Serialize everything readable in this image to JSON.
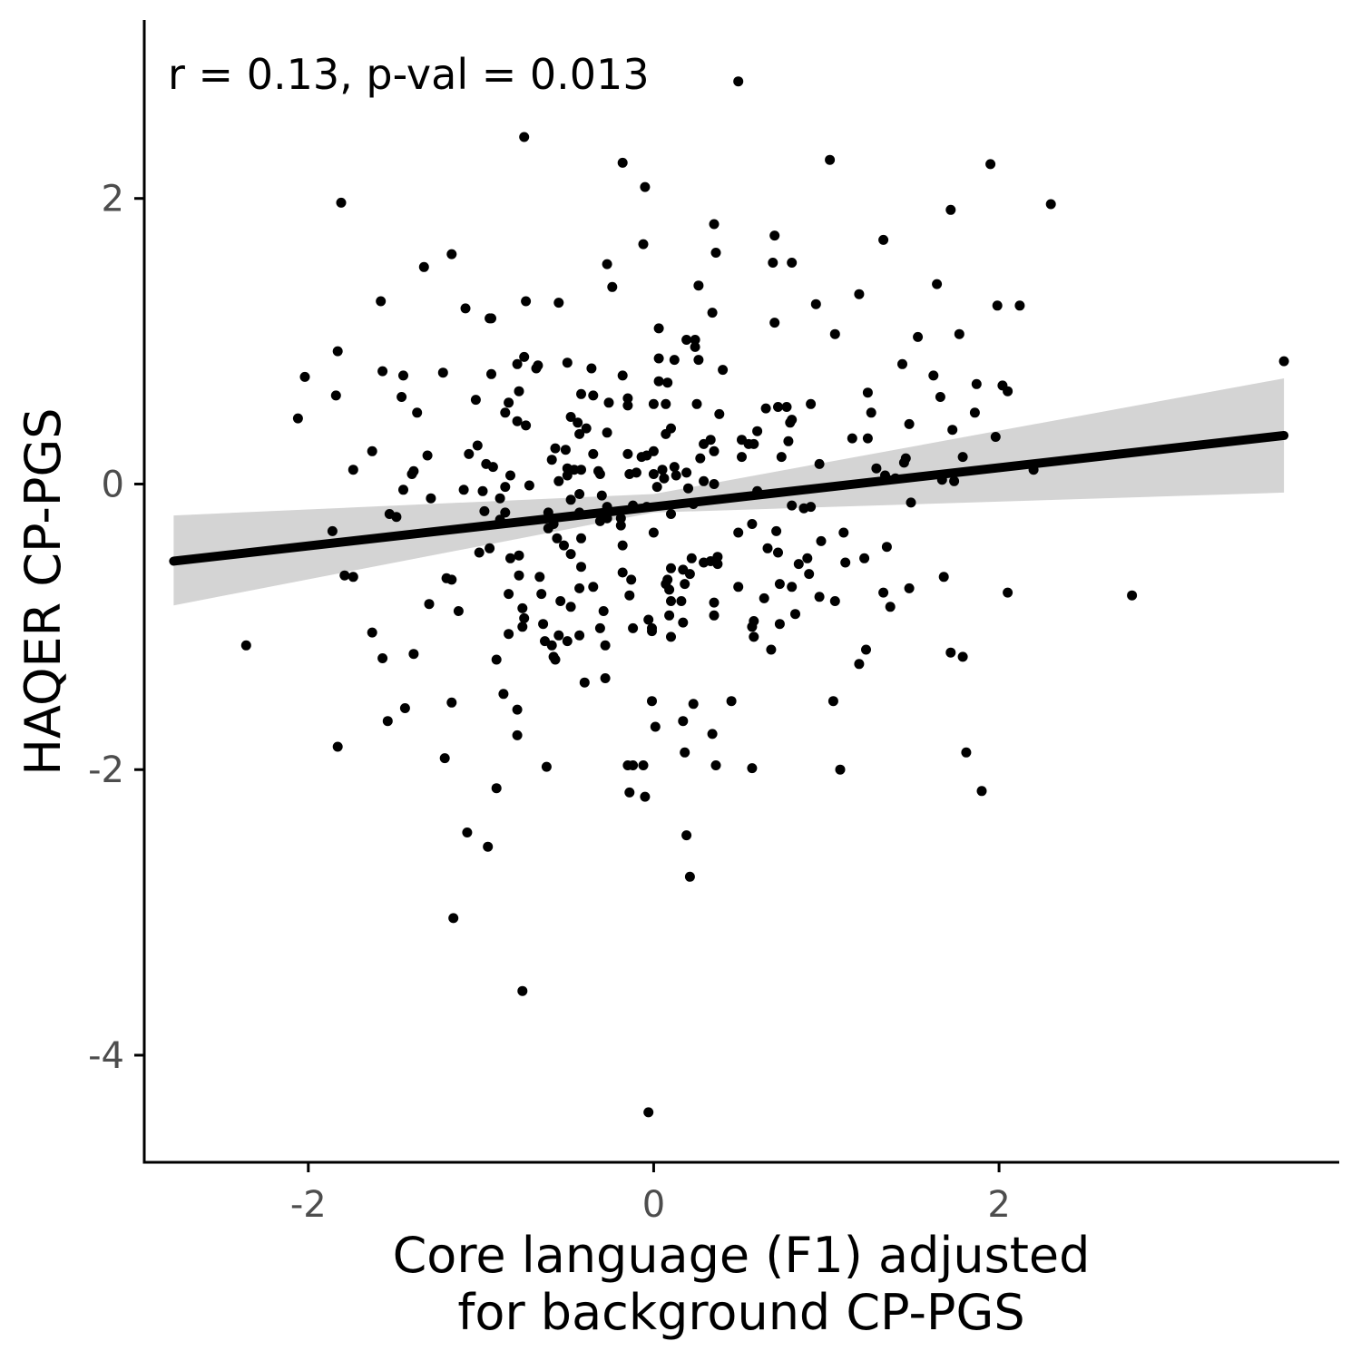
{
  "chart_data": {
    "type": "scatter",
    "annotation": "r = 0.13, p-val = 0.013",
    "xlabel_lines": [
      "Core language (F1) adjusted",
      "for background CP-PGS"
    ],
    "ylabel": "HAQER CP-PGS",
    "xlim": [
      -2.95,
      3.97
    ],
    "ylim": [
      -4.75,
      3.25
    ],
    "x_ticks": [
      {
        "value": -2,
        "label": "-2"
      },
      {
        "value": 0,
        "label": "0"
      },
      {
        "value": 2,
        "label": "2"
      }
    ],
    "y_ticks": [
      {
        "value": -4,
        "label": "-4"
      },
      {
        "value": -2,
        "label": "-2"
      },
      {
        "value": 0,
        "label": "0"
      },
      {
        "value": 2,
        "label": "2"
      }
    ],
    "grid": false,
    "colors": {
      "points": "#000000",
      "fit_line": "#000000",
      "confidence_band": "#d4d4d4",
      "axis": "#000000",
      "tick_label": "#4d4d4d"
    },
    "regression": {
      "x_range": [
        -2.78,
        3.65
      ],
      "line": [
        [
          -2.78,
          -0.54
        ],
        [
          3.65,
          0.34
        ]
      ],
      "band_upper": [
        [
          -2.78,
          -0.22
        ],
        [
          0.0,
          -0.07
        ],
        [
          3.65,
          0.74
        ]
      ],
      "band_lower": [
        [
          -2.78,
          -0.85
        ],
        [
          0.0,
          -0.2
        ],
        [
          3.65,
          -0.06
        ]
      ]
    },
    "points": [
      [
        0.49,
        2.82
      ],
      [
        -0.75,
        2.43
      ],
      [
        -0.18,
        2.25
      ],
      [
        1.02,
        2.27
      ],
      [
        1.95,
        2.24
      ],
      [
        -0.05,
        2.08
      ],
      [
        -1.81,
        1.97
      ],
      [
        2.3,
        1.96
      ],
      [
        1.72,
        1.92
      ],
      [
        0.35,
        1.82
      ],
      [
        0.7,
        1.74
      ],
      [
        1.33,
        1.71
      ],
      [
        -0.06,
        1.68
      ],
      [
        0.36,
        1.62
      ],
      [
        -1.17,
        1.61
      ],
      [
        0.69,
        1.55
      ],
      [
        0.8,
        1.55
      ],
      [
        -0.27,
        1.54
      ],
      [
        -1.33,
        1.52
      ],
      [
        -0.24,
        1.38
      ],
      [
        0.26,
        1.39
      ],
      [
        1.64,
        1.4
      ],
      [
        1.19,
        1.33
      ],
      [
        -1.58,
        1.28
      ],
      [
        -0.74,
        1.28
      ],
      [
        -0.55,
        1.27
      ],
      [
        0.94,
        1.26
      ],
      [
        1.99,
        1.25
      ],
      [
        2.12,
        1.25
      ],
      [
        -1.09,
        1.23
      ],
      [
        0.34,
        1.2
      ],
      [
        -0.94,
        1.16
      ],
      [
        -0.95,
        1.16
      ],
      [
        0.7,
        1.13
      ],
      [
        0.03,
        1.09
      ],
      [
        1.05,
        1.05
      ],
      [
        1.77,
        1.05
      ],
      [
        1.53,
        1.03
      ],
      [
        0.19,
        1.01
      ],
      [
        0.24,
        1.01
      ],
      [
        0.24,
        0.96
      ],
      [
        -1.83,
        0.93
      ],
      [
        -0.75,
        0.89
      ],
      [
        3.65,
        0.86
      ],
      [
        0.03,
        0.88
      ],
      [
        0.26,
        0.87
      ],
      [
        0.12,
        0.87
      ],
      [
        -0.5,
        0.85
      ],
      [
        -0.79,
        0.84
      ],
      [
        1.44,
        0.84
      ],
      [
        -0.68,
        0.81
      ],
      [
        -0.36,
        0.81
      ],
      [
        -0.67,
        0.83
      ],
      [
        0.4,
        0.8
      ],
      [
        -1.57,
        0.79
      ],
      [
        -1.22,
        0.78
      ],
      [
        -0.94,
        0.77
      ],
      [
        -1.45,
        0.76
      ],
      [
        -2.02,
        0.75
      ],
      [
        -0.18,
        0.76
      ],
      [
        1.62,
        0.76
      ],
      [
        0.03,
        0.72
      ],
      [
        0.08,
        0.71
      ],
      [
        1.87,
        0.7
      ],
      [
        2.02,
        0.69
      ],
      [
        -0.78,
        0.65
      ],
      [
        -0.42,
        0.63
      ],
      [
        -1.84,
        0.62
      ],
      [
        -0.35,
        0.62
      ],
      [
        1.24,
        0.64
      ],
      [
        2.05,
        0.65
      ],
      [
        -1.46,
        0.61
      ],
      [
        -0.15,
        0.6
      ],
      [
        -1.03,
        0.59
      ],
      [
        1.66,
        0.61
      ],
      [
        -0.84,
        0.57
      ],
      [
        -0.26,
        0.57
      ],
      [
        -0.15,
        0.55
      ],
      [
        0.0,
        0.56
      ],
      [
        0.07,
        0.56
      ],
      [
        0.25,
        0.56
      ],
      [
        0.91,
        0.56
      ],
      [
        0.65,
        0.53
      ],
      [
        0.72,
        0.54
      ],
      [
        0.77,
        0.54
      ],
      [
        -1.37,
        0.5
      ],
      [
        -0.86,
        0.5
      ],
      [
        1.26,
        0.5
      ],
      [
        1.86,
        0.5
      ],
      [
        0.38,
        0.49
      ],
      [
        -0.48,
        0.47
      ],
      [
        -2.06,
        0.46
      ],
      [
        -0.44,
        0.43
      ],
      [
        -0.79,
        0.44
      ],
      [
        0.8,
        0.45
      ],
      [
        1.48,
        0.42
      ],
      [
        -0.74,
        0.41
      ],
      [
        -0.39,
        0.39
      ],
      [
        0.1,
        0.39
      ],
      [
        0.6,
        0.37
      ],
      [
        0.79,
        0.43
      ],
      [
        -0.43,
        0.35
      ],
      [
        -0.27,
        0.36
      ],
      [
        0.07,
        0.35
      ],
      [
        1.73,
        0.38
      ],
      [
        0.33,
        0.31
      ],
      [
        0.51,
        0.31
      ],
      [
        0.55,
        0.28
      ],
      [
        0.58,
        0.28
      ],
      [
        0.78,
        0.3
      ],
      [
        1.15,
        0.32
      ],
      [
        1.24,
        0.32
      ],
      [
        1.98,
        0.33
      ],
      [
        -1.02,
        0.27
      ],
      [
        -1.63,
        0.23
      ],
      [
        -0.57,
        0.25
      ],
      [
        -0.51,
        0.24
      ],
      [
        0.0,
        0.23
      ],
      [
        -0.35,
        0.21
      ],
      [
        -0.04,
        0.2
      ],
      [
        0.29,
        0.28
      ],
      [
        -1.31,
        0.2
      ],
      [
        -1.07,
        0.21
      ],
      [
        -0.15,
        0.21
      ],
      [
        0.27,
        0.18
      ],
      [
        0.35,
        0.23
      ],
      [
        0.74,
        0.19
      ],
      [
        0.51,
        0.19
      ],
      [
        -0.59,
        0.17
      ],
      [
        -0.97,
        0.14
      ],
      [
        -0.5,
        0.11
      ],
      [
        -0.42,
        0.1
      ],
      [
        -0.32,
        0.09
      ],
      [
        -0.5,
        0.06
      ],
      [
        -0.46,
        0.1
      ],
      [
        -0.07,
        0.19
      ],
      [
        0.13,
        0.06
      ],
      [
        -0.1,
        0.08
      ],
      [
        0.05,
        0.1
      ],
      [
        0.12,
        0.12
      ],
      [
        0.96,
        0.14
      ],
      [
        1.45,
        0.15
      ],
      [
        1.46,
        0.18
      ],
      [
        1.79,
        0.19
      ],
      [
        -1.74,
        0.1
      ],
      [
        -1.4,
        0.07
      ],
      [
        -1.39,
        0.09
      ],
      [
        -0.93,
        0.12
      ],
      [
        -0.83,
        0.06
      ],
      [
        -0.55,
        0.02
      ],
      [
        -0.31,
        0.07
      ],
      [
        -0.14,
        0.07
      ],
      [
        0.0,
        0.07
      ],
      [
        0.06,
        0.04
      ],
      [
        0.19,
        0.08
      ],
      [
        0.29,
        0.02
      ],
      [
        1.29,
        0.11
      ],
      [
        1.34,
        0.06
      ],
      [
        1.74,
        0.02
      ],
      [
        2.2,
        0.1
      ],
      [
        -0.86,
        -0.02
      ],
      [
        -1.1,
        -0.04
      ],
      [
        -0.99,
        -0.05
      ],
      [
        -0.72,
        -0.01
      ],
      [
        -0.43,
        -0.07
      ],
      [
        -0.3,
        -0.08
      ],
      [
        0.02,
        -0.02
      ],
      [
        0.2,
        -0.03
      ],
      [
        0.35,
        0.0
      ],
      [
        0.6,
        -0.05
      ],
      [
        1.4,
        0.04
      ],
      [
        1.67,
        0.03
      ],
      [
        -1.45,
        -0.04
      ],
      [
        -1.29,
        -0.1
      ],
      [
        -0.89,
        -0.1
      ],
      [
        -0.48,
        -0.11
      ],
      [
        -0.27,
        -0.16
      ],
      [
        -0.12,
        -0.15
      ],
      [
        -0.04,
        -0.16
      ],
      [
        0.23,
        -0.14
      ],
      [
        0.8,
        -0.15
      ],
      [
        0.87,
        -0.17
      ],
      [
        0.91,
        -0.16
      ],
      [
        1.49,
        -0.13
      ],
      [
        -0.98,
        -0.19
      ],
      [
        -0.86,
        -0.2
      ],
      [
        -0.61,
        -0.2
      ],
      [
        -0.43,
        -0.2
      ],
      [
        -0.27,
        -0.24
      ],
      [
        -0.19,
        -0.24
      ],
      [
        0.1,
        -0.21
      ],
      [
        -1.49,
        -0.23
      ],
      [
        -1.53,
        -0.21
      ],
      [
        -0.89,
        -0.25
      ],
      [
        -0.58,
        -0.28
      ],
      [
        -0.31,
        -0.26
      ],
      [
        -0.19,
        -0.29
      ],
      [
        0.57,
        -0.28
      ],
      [
        -1.86,
        -0.33
      ],
      [
        -0.61,
        -0.31
      ],
      [
        0.0,
        -0.34
      ],
      [
        0.49,
        -0.34
      ],
      [
        0.71,
        -0.33
      ],
      [
        1.1,
        -0.34
      ],
      [
        -0.56,
        -0.38
      ],
      [
        -0.42,
        -0.38
      ],
      [
        -0.52,
        -0.43
      ],
      [
        0.97,
        -0.4
      ],
      [
        1.35,
        -0.44
      ],
      [
        -0.95,
        -0.45
      ],
      [
        -0.48,
        -0.49
      ],
      [
        -0.18,
        -0.43
      ],
      [
        0.37,
        -0.51
      ],
      [
        0.66,
        -0.45
      ],
      [
        0.72,
        -0.48
      ],
      [
        1.22,
        -0.52
      ],
      [
        -1.01,
        -0.48
      ],
      [
        -0.78,
        -0.5
      ],
      [
        -0.83,
        -0.52
      ],
      [
        0.22,
        -0.52
      ],
      [
        0.29,
        -0.55
      ],
      [
        0.33,
        -0.54
      ],
      [
        0.37,
        -0.56
      ],
      [
        0.84,
        -0.56
      ],
      [
        0.89,
        -0.52
      ],
      [
        1.11,
        -0.55
      ],
      [
        -0.42,
        -0.58
      ],
      [
        0.1,
        -0.59
      ],
      [
        0.21,
        -0.63
      ],
      [
        -0.78,
        -0.64
      ],
      [
        -0.66,
        -0.65
      ],
      [
        -0.18,
        -0.62
      ],
      [
        0.17,
        -0.6
      ],
      [
        0.08,
        -0.67
      ],
      [
        0.9,
        -0.63
      ],
      [
        -1.2,
        -0.66
      ],
      [
        -1.17,
        -0.67
      ],
      [
        -0.13,
        -0.67
      ],
      [
        0.07,
        -0.7
      ],
      [
        0.18,
        -0.7
      ],
      [
        -1.79,
        -0.64
      ],
      [
        -1.74,
        -0.65
      ],
      [
        0.73,
        -0.7
      ],
      [
        -0.35,
        -0.72
      ],
      [
        -0.43,
        -0.73
      ],
      [
        0.49,
        -0.72
      ],
      [
        0.09,
        -0.74
      ],
      [
        0.8,
        -0.72
      ],
      [
        0.35,
        -0.83
      ],
      [
        0.64,
        -0.8
      ],
      [
        0.96,
        -0.79
      ],
      [
        1.33,
        -0.76
      ],
      [
        1.48,
        -0.73
      ],
      [
        1.68,
        -0.65
      ],
      [
        2.05,
        -0.76
      ],
      [
        2.77,
        -0.78
      ],
      [
        -0.84,
        -0.77
      ],
      [
        -0.65,
        -0.77
      ],
      [
        -0.54,
        -0.82
      ],
      [
        -0.14,
        -0.78
      ],
      [
        0.1,
        -0.82
      ],
      [
        0.16,
        -0.82
      ],
      [
        -0.48,
        -0.86
      ],
      [
        -1.3,
        -0.84
      ],
      [
        -0.76,
        -0.87
      ],
      [
        -0.29,
        -0.89
      ],
      [
        0.09,
        -0.92
      ],
      [
        0.35,
        -0.92
      ],
      [
        -0.75,
        -0.94
      ],
      [
        0.58,
        -0.96
      ],
      [
        -1.13,
        -0.89
      ],
      [
        0.82,
        -0.91
      ],
      [
        1.05,
        -0.82
      ],
      [
        1.37,
        -0.86
      ],
      [
        -0.64,
        -0.98
      ],
      [
        -0.76,
        -1.0
      ],
      [
        0.17,
        -0.97
      ],
      [
        -0.03,
        -0.95
      ],
      [
        0.57,
        -1.0
      ],
      [
        0.73,
        -0.98
      ],
      [
        -0.12,
        -1.01
      ],
      [
        -0.01,
        -1.01
      ],
      [
        -0.31,
        -1.01
      ],
      [
        -1.63,
        -1.04
      ],
      [
        -0.84,
        -1.05
      ],
      [
        0.1,
        -1.07
      ],
      [
        -0.43,
        -1.06
      ],
      [
        -0.55,
        -1.06
      ],
      [
        -0.5,
        -1.1
      ],
      [
        -0.63,
        -1.1
      ],
      [
        0.58,
        -1.07
      ],
      [
        0.68,
        -1.16
      ],
      [
        -2.36,
        -1.13
      ],
      [
        -0.01,
        -1.03
      ],
      [
        -0.59,
        -1.13
      ],
      [
        -0.28,
        -1.13
      ],
      [
        -1.39,
        -1.19
      ],
      [
        -1.57,
        -1.22
      ],
      [
        -0.91,
        -1.23
      ],
      [
        -0.58,
        -1.21
      ],
      [
        -0.57,
        -1.23
      ],
      [
        1.23,
        -1.16
      ],
      [
        1.19,
        -1.26
      ],
      [
        1.72,
        -1.18
      ],
      [
        1.79,
        -1.21
      ],
      [
        -0.4,
        -1.39
      ],
      [
        -0.28,
        -1.36
      ],
      [
        -0.87,
        -1.47
      ],
      [
        -1.17,
        -1.53
      ],
      [
        -1.44,
        -1.57
      ],
      [
        -0.79,
        -1.58
      ],
      [
        -0.01,
        -1.52
      ],
      [
        0.23,
        -1.54
      ],
      [
        0.45,
        -1.52
      ],
      [
        1.04,
        -1.52
      ],
      [
        -1.54,
        -1.66
      ],
      [
        0.17,
        -1.66
      ],
      [
        0.01,
        -1.7
      ],
      [
        -0.79,
        -1.76
      ],
      [
        0.34,
        -1.75
      ],
      [
        -1.83,
        -1.84
      ],
      [
        0.18,
        -1.88
      ],
      [
        1.81,
        -1.88
      ],
      [
        -1.21,
        -1.92
      ],
      [
        -0.15,
        -1.97
      ],
      [
        -0.12,
        -1.97
      ],
      [
        -0.06,
        -1.97
      ],
      [
        -0.62,
        -1.98
      ],
      [
        0.36,
        -1.97
      ],
      [
        0.57,
        -1.99
      ],
      [
        1.08,
        -2.0
      ],
      [
        -0.91,
        -2.13
      ],
      [
        -0.14,
        -2.16
      ],
      [
        -0.05,
        -2.19
      ],
      [
        1.9,
        -2.15
      ],
      [
        -1.08,
        -2.44
      ],
      [
        -0.96,
        -2.54
      ],
      [
        0.19,
        -2.46
      ],
      [
        0.21,
        -2.75
      ],
      [
        -1.16,
        -3.04
      ],
      [
        -0.76,
        -3.55
      ],
      [
        -0.03,
        -4.4
      ]
    ]
  }
}
